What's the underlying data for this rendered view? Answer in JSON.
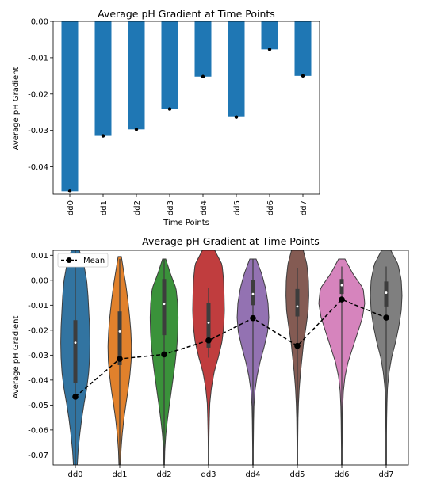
{
  "chart_data": [
    {
      "type": "bar",
      "title": "Average pH Gradient at Time Points",
      "xlabel": "Time Points",
      "ylabel": "Average pH Gradient",
      "categories": [
        "dd0",
        "dd1",
        "dd2",
        "dd3",
        "dd4",
        "dd5",
        "dd6",
        "dd7"
      ],
      "values": [
        -0.0467,
        -0.0315,
        -0.0297,
        -0.0241,
        -0.0152,
        -0.0263,
        -0.0077,
        -0.015
      ],
      "ylim": [
        -0.0475,
        0.0
      ],
      "yticks": [
        "0.00",
        "-0.01",
        "-0.02",
        "-0.03",
        "-0.04"
      ],
      "bar_color": "#1f77b4",
      "marker_color": "#000000",
      "grid": false
    },
    {
      "type": "violin",
      "title": "Average pH Gradient at Time Points",
      "xlabel": "",
      "ylabel": "Average pH Gradient",
      "categories": [
        "dd0",
        "dd1",
        "dd2",
        "dd3",
        "dd4",
        "dd5",
        "dd6",
        "dd7"
      ],
      "colors": [
        "#3274a1",
        "#e1812c",
        "#3a923a",
        "#c03d3e",
        "#9372b2",
        "#845b53",
        "#d684bd",
        "#7f7f7f"
      ],
      "ylim": [
        -0.074,
        0.012
      ],
      "yticks": [
        "0.01",
        "0.00",
        "-0.01",
        "-0.02",
        "-0.03",
        "-0.04",
        "-0.05",
        "-0.06",
        "-0.07"
      ],
      "medians": [
        -0.025,
        -0.0205,
        -0.0095,
        -0.017,
        -0.0055,
        -0.0105,
        -0.002,
        -0.005
      ],
      "quartiles": [
        [
          -0.041,
          -0.016
        ],
        [
          -0.034,
          -0.0125
        ],
        [
          -0.022,
          0.0005
        ],
        [
          -0.027,
          -0.009
        ],
        [
          -0.01,
          0.0
        ],
        [
          -0.0145,
          -0.0035
        ],
        [
          -0.0055,
          0.0005
        ],
        [
          -0.0105,
          -0.0005
        ]
      ],
      "whiskers": [
        [
          -0.074,
          0.012
        ],
        [
          -0.074,
          0.0085
        ],
        [
          -0.074,
          0.0085
        ],
        [
          -0.031,
          -0.003
        ],
        [
          -0.074,
          0.0085
        ],
        [
          -0.074,
          0.005
        ],
        [
          -0.074,
          0.0055
        ],
        [
          -0.074,
          0.0055
        ]
      ],
      "series": [
        {
          "name": "Mean",
          "type": "line",
          "style": "dashed",
          "marker": "o",
          "values": [
            -0.0467,
            -0.0315,
            -0.0297,
            -0.0241,
            -0.0152,
            -0.0263,
            -0.0077,
            -0.015
          ]
        }
      ],
      "legend": "upper-left",
      "grid": false
    }
  ]
}
